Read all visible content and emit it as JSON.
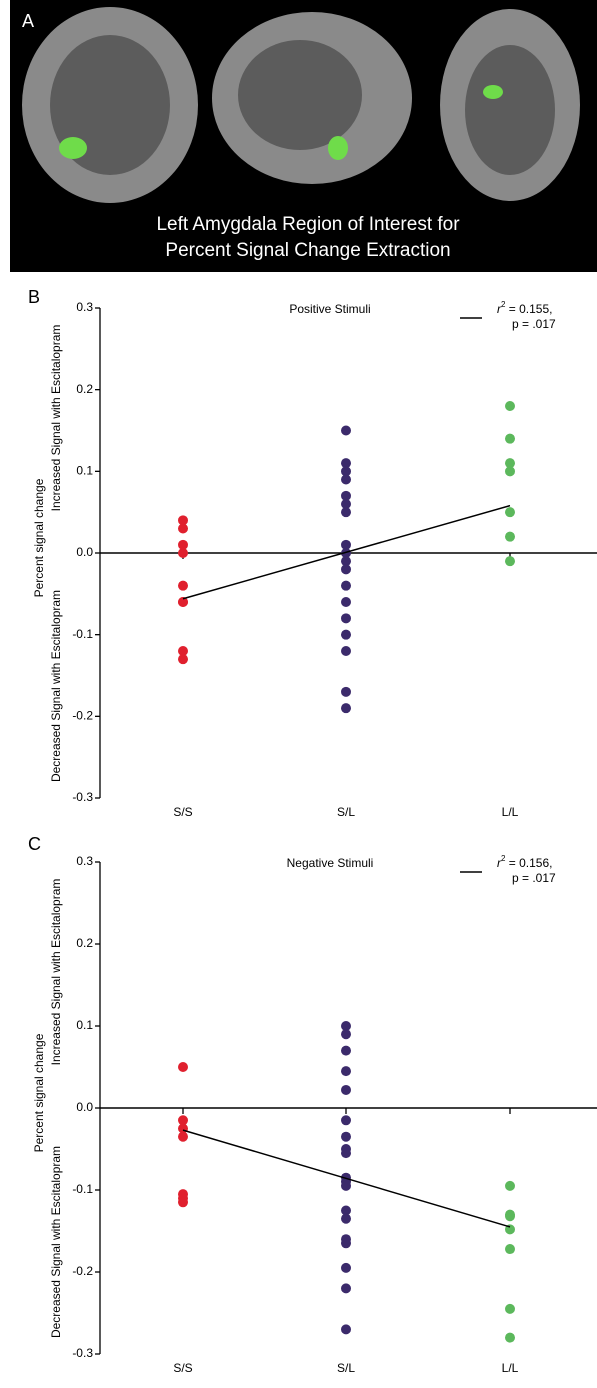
{
  "panel_a": {
    "label": "A",
    "caption": [
      "Left Amygdala Region of Interest for",
      "Percent Signal Change Extraction"
    ]
  },
  "chart_data": [
    {
      "type": "scatter",
      "panel_label": "B",
      "title": "Positive Stimuli",
      "y_label": "Percent signal change",
      "y_label_upper": "Increased Signal with Escitalopram",
      "y_label_lower": "Decreased Signal with Escitalopram",
      "categories": [
        "S/S",
        "S/L",
        "L/L"
      ],
      "series": [
        {
          "color": "#e0202e",
          "values": [
            0.04,
            0.03,
            0.01,
            0.0,
            -0.04,
            -0.06,
            -0.06,
            -0.12,
            -0.13
          ]
        },
        {
          "color": "#3b2a6b",
          "values": [
            0.15,
            0.11,
            0.1,
            0.09,
            0.07,
            0.06,
            0.05,
            0.01,
            0.0,
            -0.01,
            -0.02,
            -0.04,
            -0.06,
            -0.08,
            -0.1,
            -0.12,
            -0.17,
            -0.19
          ]
        },
        {
          "color": "#5cb85c",
          "values": [
            0.18,
            0.14,
            0.11,
            0.1,
            0.05,
            0.02,
            -0.01
          ]
        }
      ],
      "fit": {
        "values": [
          -0.056,
          0.058
        ],
        "r_symbol": "r",
        "r_exponent": "2",
        "r_text": " = 0.155,",
        "p_text": "p = .017"
      },
      "ylim": [
        -0.3,
        0.3
      ],
      "yticks": [
        -0.3,
        -0.2,
        -0.1,
        {
          "value": 0,
          "label": "0.0"
        },
        0.1,
        0.2,
        0.3
      ]
    },
    {
      "type": "scatter",
      "panel_label": "C",
      "title": "Negative Stimuli",
      "y_label": "Percent signal change",
      "y_label_upper": "Increased Signal with Escitalopram",
      "y_label_lower": "Decreased Signal with Escitalopram",
      "categories": [
        "S/S",
        "S/L",
        "L/L"
      ],
      "series": [
        {
          "color": "#e0202e",
          "values": [
            0.05,
            -0.015,
            -0.025,
            -0.035,
            -0.105,
            -0.11,
            -0.115
          ]
        },
        {
          "color": "#3b2a6b",
          "values": [
            0.1,
            0.09,
            0.07,
            0.045,
            0.022,
            -0.015,
            -0.035,
            -0.05,
            -0.055,
            -0.085,
            -0.09,
            -0.095,
            -0.125,
            -0.135,
            -0.16,
            -0.165,
            -0.195,
            -0.22,
            -0.27
          ]
        },
        {
          "color": "#5cb85c",
          "values": [
            -0.095,
            -0.13,
            -0.132,
            -0.148,
            -0.172,
            -0.245,
            -0.28
          ]
        }
      ],
      "fit": {
        "values": [
          -0.027,
          -0.145
        ],
        "r_symbol": "r",
        "r_exponent": "2",
        "r_text": " = 0.156,",
        "p_text": "p = .017"
      },
      "ylim": [
        -0.3,
        0.3
      ],
      "yticks": [
        -0.3,
        -0.2,
        -0.1,
        {
          "value": 0,
          "label": "0.0"
        },
        0.1,
        0.2,
        0.3
      ]
    }
  ]
}
